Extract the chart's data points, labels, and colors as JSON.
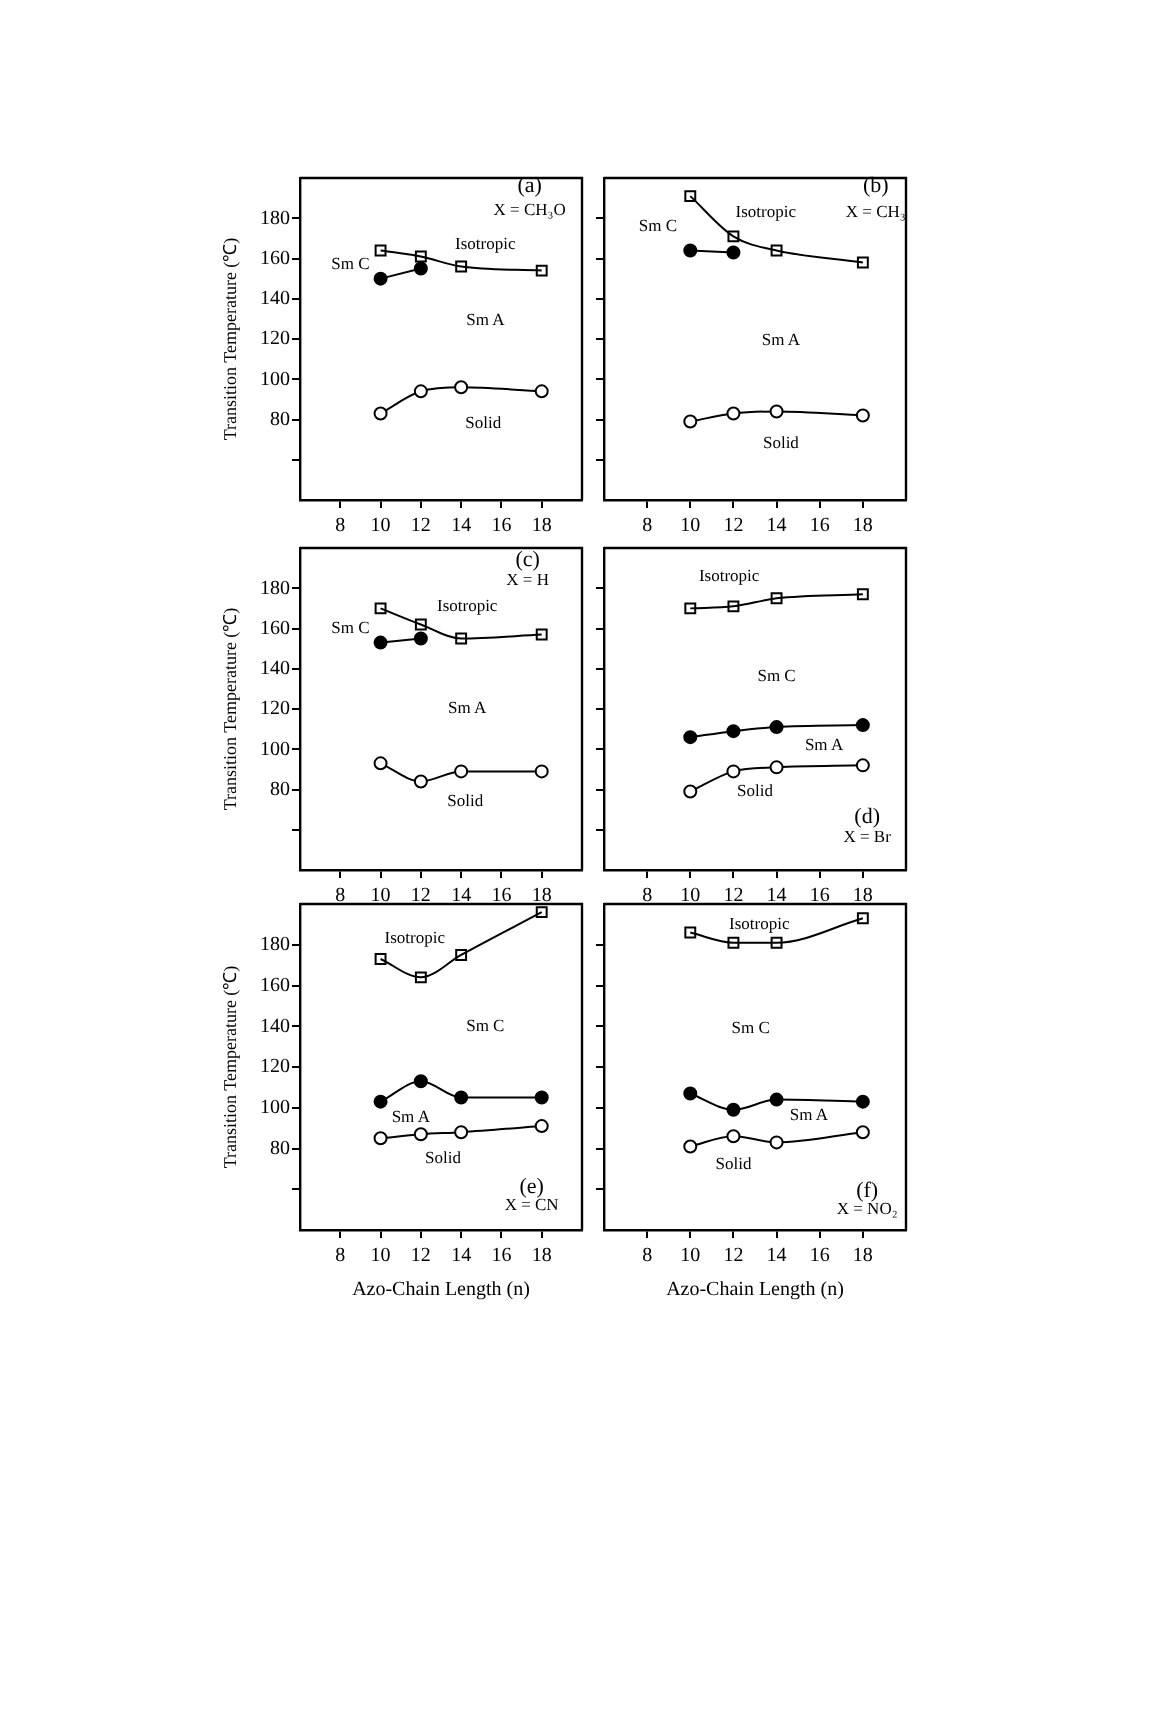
{
  "chart_data": [
    {
      "type": "line",
      "ylabel": "Transition Temperature (℃)",
      "xlim": [
        6,
        20
      ],
      "ylim": [
        40,
        200
      ],
      "xticks": [
        8,
        10,
        12,
        14,
        16,
        18
      ],
      "yticks": [
        {
          "value": 60,
          "label": null
        },
        80,
        100,
        120,
        140,
        160,
        180
      ],
      "grid": false,
      "legend": false,
      "line_style": "solid",
      "series": [
        {
          "color": "#000000",
          "marker": "square",
          "x": [
            10,
            12,
            14,
            18
          ],
          "values": [
            164,
            161,
            156,
            154
          ]
        },
        {
          "color": "#000000",
          "marker": "circle",
          "x": [
            10,
            12
          ],
          "values": [
            150,
            155
          ]
        },
        {
          "color": "#000000",
          "marker": "circle",
          "x": [
            10,
            12,
            14,
            18
          ],
          "values": [
            83,
            94,
            96,
            94
          ]
        }
      ],
      "annotations": [
        "(a)",
        "X = CH₃O",
        "Isotropic",
        "Sm C",
        "Sm A",
        "Solid"
      ]
    },
    {
      "type": "line",
      "xlim": [
        6,
        20
      ],
      "ylim": [
        40,
        200
      ],
      "xticks": [
        8,
        10,
        12,
        14,
        16,
        18
      ],
      "yticks": [
        {
          "value": 60,
          "label": null
        },
        {
          "value": 80,
          "label": null
        },
        {
          "value": 100,
          "label": null
        },
        {
          "value": 120,
          "label": null
        },
        {
          "value": 140,
          "label": null
        },
        {
          "value": 160,
          "label": null
        },
        {
          "value": 180,
          "label": null
        }
      ],
      "grid": false,
      "legend": false,
      "line_style": "solid",
      "tick_labels": "x",
      "series": [
        {
          "color": "#000000",
          "marker": "square",
          "x": [
            10,
            12,
            14,
            18
          ],
          "values": [
            191,
            171,
            164,
            158
          ]
        },
        {
          "color": "#000000",
          "marker": "circle",
          "x": [
            10,
            12
          ],
          "values": [
            164,
            163
          ]
        },
        {
          "color": "#000000",
          "marker": "circle",
          "x": [
            10,
            12,
            14,
            18
          ],
          "values": [
            79,
            83,
            84,
            82
          ]
        }
      ],
      "annotations": [
        "(b)",
        "X = CH₃",
        "Isotropic",
        "Sm C",
        "Sm A",
        "Solid"
      ]
    },
    {
      "type": "line",
      "ylabel": "Transition Temperature (℃)",
      "xlim": [
        6,
        20
      ],
      "ylim": [
        40,
        200
      ],
      "xticks": [
        8,
        10,
        12,
        14,
        16,
        18
      ],
      "yticks": [
        {
          "value": 60,
          "label": null
        },
        80,
        100,
        120,
        140,
        160,
        180
      ],
      "grid": false,
      "legend": false,
      "line_style": "solid",
      "series": [
        {
          "color": "#000000",
          "marker": "square",
          "x": [
            10,
            12,
            14,
            18
          ],
          "values": [
            170,
            162,
            155,
            157
          ]
        },
        {
          "color": "#000000",
          "marker": "circle",
          "x": [
            10,
            12
          ],
          "values": [
            153,
            155
          ]
        },
        {
          "color": "#000000",
          "marker": "circle",
          "x": [
            10,
            12,
            14,
            18
          ],
          "values": [
            93,
            84,
            89,
            89
          ]
        }
      ],
      "annotations": [
        "(c)",
        "X = H",
        "Isotropic",
        "Sm C",
        "Sm A",
        "Solid"
      ]
    },
    {
      "type": "line",
      "xlim": [
        6,
        20
      ],
      "ylim": [
        40,
        200
      ],
      "xticks": [
        8,
        10,
        12,
        14,
        16,
        18
      ],
      "yticks": [
        {
          "value": 60,
          "label": null
        },
        {
          "value": 80,
          "label": null
        },
        {
          "value": 100,
          "label": null
        },
        {
          "value": 120,
          "label": null
        },
        {
          "value": 140,
          "label": null
        },
        {
          "value": 160,
          "label": null
        },
        {
          "value": 180,
          "label": null
        }
      ],
      "grid": false,
      "legend": false,
      "line_style": "solid",
      "tick_labels": "x",
      "series": [
        {
          "color": "#000000",
          "marker": "square",
          "x": [
            10,
            12,
            14,
            18
          ],
          "values": [
            170,
            171,
            175,
            177
          ]
        },
        {
          "color": "#000000",
          "marker": "circle",
          "x": [
            10,
            12,
            14,
            18
          ],
          "values": [
            106,
            109,
            111,
            112
          ]
        },
        {
          "color": "#000000",
          "marker": "circle",
          "x": [
            10,
            12,
            14,
            18
          ],
          "values": [
            79,
            89,
            91,
            92
          ]
        }
      ],
      "annotations": [
        "Isotropic",
        "Sm C",
        "Sm A",
        "Solid",
        "(d)",
        "X = Br"
      ]
    },
    {
      "type": "line",
      "xlabel": "Azo-Chain Length (n)",
      "ylabel": "Transition Temperature (℃)",
      "xlim": [
        6,
        20
      ],
      "ylim": [
        40,
        200
      ],
      "xticks": [
        8,
        10,
        12,
        14,
        16,
        18
      ],
      "yticks": [
        {
          "value": 60,
          "label": null
        },
        80,
        100,
        120,
        140,
        160,
        180
      ],
      "grid": false,
      "legend": false,
      "line_style": "solid",
      "series": [
        {
          "color": "#000000",
          "marker": "square",
          "x": [
            10,
            12,
            14,
            18
          ],
          "values": [
            173,
            164,
            175,
            196
          ]
        },
        {
          "color": "#000000",
          "marker": "circle",
          "x": [
            10,
            12,
            14,
            18
          ],
          "values": [
            103,
            113,
            105,
            105
          ]
        },
        {
          "color": "#000000",
          "marker": "circle",
          "x": [
            10,
            12,
            14,
            18
          ],
          "values": [
            85,
            87,
            88,
            91
          ]
        }
      ],
      "annotations": [
        "Isotropic",
        "Sm C",
        "Sm A",
        "Solid",
        "(e)",
        "X = CN"
      ]
    },
    {
      "type": "line",
      "xlabel": "Azo-Chain Length (n)",
      "xlim": [
        6,
        20
      ],
      "ylim": [
        40,
        200
      ],
      "xticks": [
        8,
        10,
        12,
        14,
        16,
        18
      ],
      "yticks": [
        {
          "value": 60,
          "label": null
        },
        {
          "value": 80,
          "label": null
        },
        {
          "value": 100,
          "label": null
        },
        {
          "value": 120,
          "label": null
        },
        {
          "value": 140,
          "label": null
        },
        {
          "value": 160,
          "label": null
        },
        {
          "value": 180,
          "label": null
        }
      ],
      "grid": false,
      "legend": false,
      "line_style": "solid",
      "tick_labels": "x",
      "series": [
        {
          "color": "#000000",
          "marker": "square",
          "x": [
            10,
            12,
            14,
            18
          ],
          "values": [
            186,
            181,
            181,
            193
          ]
        },
        {
          "color": "#000000",
          "marker": "circle",
          "x": [
            10,
            12,
            14,
            18
          ],
          "values": [
            107,
            99,
            104,
            103
          ]
        },
        {
          "color": "#000000",
          "marker": "circle",
          "x": [
            10,
            12,
            14,
            18
          ],
          "values": [
            81,
            86,
            83,
            88
          ]
        }
      ],
      "annotations": [
        "Isotropic",
        "Sm C",
        "Sm A",
        "Solid",
        "(f)",
        "X = NO₂"
      ]
    }
  ]
}
